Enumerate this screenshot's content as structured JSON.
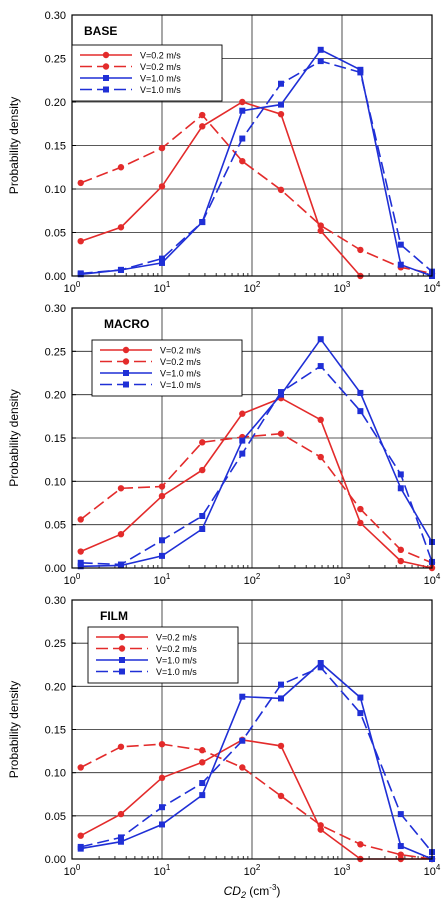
{
  "chart_data": [
    {
      "type": "line",
      "title": "BASE",
      "xlabel": "",
      "ylabel": "Probability density",
      "xscale": "log",
      "xlim": [
        1,
        10000
      ],
      "ylim": [
        0,
        0.3
      ],
      "grid": true,
      "legend_position": "top-left",
      "xticks": [
        "10^0",
        "10^1",
        "10^2",
        "10^3",
        "10^4"
      ],
      "yticks": [
        "0.00",
        "0.05",
        "0.10",
        "0.15",
        "0.20",
        "0.25",
        "0.30"
      ],
      "series": [
        {
          "name": "V=0.2 m/s",
          "color": "#e32b2b",
          "dash": "solid",
          "marker": "circle",
          "x": [
            1.25,
            3.5,
            10,
            28,
            78,
            210,
            580,
            1600
          ],
          "y": [
            0.04,
            0.056,
            0.103,
            0.172,
            0.2,
            0.186,
            0.052,
            0.0
          ]
        },
        {
          "name": "V=0.2 m/s",
          "color": "#e32b2b",
          "dash": "dashed",
          "marker": "circle",
          "x": [
            1.25,
            3.5,
            10,
            28,
            78,
            210,
            580,
            1600,
            4500,
            10000
          ],
          "y": [
            0.107,
            0.125,
            0.147,
            0.185,
            0.132,
            0.099,
            0.058,
            0.03,
            0.01,
            0.003
          ]
        },
        {
          "name": "V=1.0 m/s",
          "color": "#1f2fd6",
          "dash": "solid",
          "marker": "square",
          "x": [
            1.25,
            3.5,
            10,
            28,
            78,
            210,
            580,
            1600,
            4500,
            10000
          ],
          "y": [
            0.002,
            0.007,
            0.015,
            0.062,
            0.19,
            0.197,
            0.26,
            0.237,
            0.013,
            0.0
          ]
        },
        {
          "name": "V=1.0 m/s",
          "color": "#1f2fd6",
          "dash": "dashed",
          "marker": "square",
          "x": [
            1.25,
            3.5,
            10,
            28,
            78,
            210,
            580,
            1600,
            4500,
            10000
          ],
          "y": [
            0.003,
            0.007,
            0.02,
            0.062,
            0.158,
            0.221,
            0.247,
            0.234,
            0.036,
            0.005
          ]
        }
      ]
    },
    {
      "type": "line",
      "title": "MACRO",
      "xlabel": "",
      "ylabel": "Probability density",
      "xscale": "log",
      "xlim": [
        1,
        10000
      ],
      "ylim": [
        0,
        0.3
      ],
      "grid": true,
      "legend_position": "top-left",
      "xticks": [
        "10^0",
        "10^1",
        "10^2",
        "10^3",
        "10^4"
      ],
      "yticks": [
        "0.00",
        "0.05",
        "0.10",
        "0.15",
        "0.20",
        "0.25",
        "0.30"
      ],
      "series": [
        {
          "name": "V=0.2 m/s",
          "color": "#e32b2b",
          "dash": "solid",
          "marker": "circle",
          "x": [
            1.25,
            3.5,
            10,
            28,
            78,
            210,
            580,
            1600,
            4500,
            10000
          ],
          "y": [
            0.019,
            0.039,
            0.083,
            0.113,
            0.178,
            0.196,
            0.171,
            0.052,
            0.008,
            0.0
          ]
        },
        {
          "name": "V=0.2 m/s",
          "color": "#e32b2b",
          "dash": "dashed",
          "marker": "circle",
          "x": [
            1.25,
            3.5,
            10,
            28,
            78,
            210,
            580,
            1600,
            4500,
            10000
          ],
          "y": [
            0.056,
            0.092,
            0.094,
            0.145,
            0.151,
            0.155,
            0.128,
            0.068,
            0.021,
            0.006
          ]
        },
        {
          "name": "V=1.0 m/s",
          "color": "#1f2fd6",
          "dash": "solid",
          "marker": "square",
          "x": [
            1.25,
            3.5,
            10,
            28,
            78,
            210,
            580,
            1600,
            4500,
            10000
          ],
          "y": [
            0.002,
            0.003,
            0.014,
            0.045,
            0.147,
            0.2,
            0.264,
            0.202,
            0.092,
            0.03
          ]
        },
        {
          "name": "V=1.0 m/s",
          "color": "#1f2fd6",
          "dash": "dashed",
          "marker": "square",
          "x": [
            1.25,
            3.5,
            10,
            28,
            78,
            210,
            580,
            1600,
            4500,
            10000
          ],
          "y": [
            0.006,
            0.004,
            0.032,
            0.06,
            0.132,
            0.203,
            0.233,
            0.181,
            0.108,
            0.007
          ]
        }
      ]
    },
    {
      "type": "line",
      "title": "FILM",
      "xlabel": "CD2 (cm-3)",
      "ylabel": "Probability density",
      "xscale": "log",
      "xlim": [
        1,
        10000
      ],
      "ylim": [
        0,
        0.3
      ],
      "grid": true,
      "legend_position": "top-left",
      "xticks": [
        "10^0",
        "10^1",
        "10^2",
        "10^3",
        "10^4"
      ],
      "yticks": [
        "0.00",
        "0.05",
        "0.10",
        "0.15",
        "0.20",
        "0.25",
        "0.30"
      ],
      "series": [
        {
          "name": "V=0.2 m/s",
          "color": "#e32b2b",
          "dash": "solid",
          "marker": "circle",
          "x": [
            1.25,
            3.5,
            10,
            28,
            78,
            210,
            580,
            1600,
            4500,
            10000
          ],
          "y": [
            0.027,
            0.052,
            0.094,
            0.112,
            0.138,
            0.131,
            0.034,
            0.0,
            0.0,
            0.0
          ]
        },
        {
          "name": "V=0.2 m/s",
          "color": "#e32b2b",
          "dash": "dashed",
          "marker": "circle",
          "x": [
            1.25,
            3.5,
            10,
            28,
            78,
            210,
            580,
            1600,
            4500,
            10000
          ],
          "y": [
            0.106,
            0.13,
            0.133,
            0.126,
            0.106,
            0.073,
            0.039,
            0.017,
            0.005,
            0.0
          ]
        },
        {
          "name": "V=1.0 m/s",
          "color": "#1f2fd6",
          "dash": "solid",
          "marker": "square",
          "x": [
            1.25,
            3.5,
            10,
            28,
            78,
            210,
            580,
            1600,
            4500,
            10000
          ],
          "y": [
            0.012,
            0.02,
            0.04,
            0.074,
            0.188,
            0.186,
            0.227,
            0.187,
            0.015,
            0.0
          ]
        },
        {
          "name": "V=1.0 m/s",
          "color": "#1f2fd6",
          "dash": "dashed",
          "marker": "square",
          "x": [
            1.25,
            3.5,
            10,
            28,
            78,
            210,
            580,
            1600,
            4500,
            10000
          ],
          "y": [
            0.014,
            0.025,
            0.06,
            0.088,
            0.137,
            0.202,
            0.222,
            0.169,
            0.052,
            0.008
          ]
        }
      ]
    }
  ]
}
